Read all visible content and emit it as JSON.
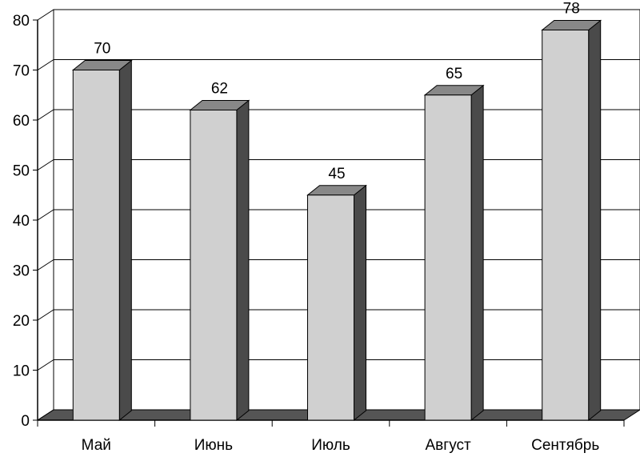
{
  "chart_data": {
    "type": "bar3d",
    "categories": [
      "Май",
      "Июнь",
      "Июль",
      "Август",
      "Сентябрь"
    ],
    "values": [
      70,
      62,
      45,
      65,
      78
    ],
    "color": "#d0d0d0",
    "ylim": [
      0,
      80
    ],
    "yticks": [
      0,
      10,
      20,
      30,
      40,
      50,
      60,
      70,
      80
    ],
    "grid": true
  }
}
